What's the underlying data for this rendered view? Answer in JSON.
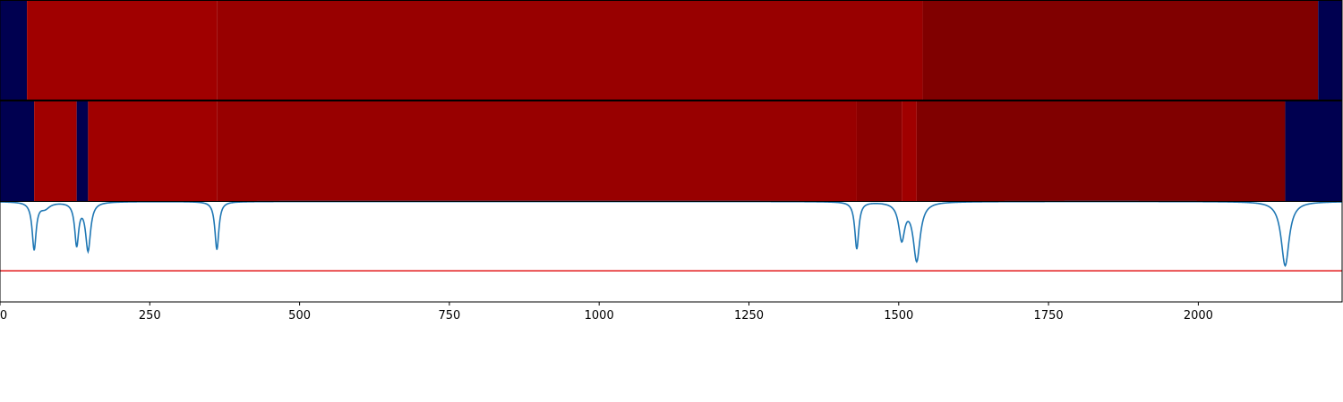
{
  "chart_data": [
    {
      "type": "heatmap",
      "xlim": [
        0,
        2240
      ],
      "segments": [
        {
          "x0": 0,
          "x1": 45,
          "color": "#000050"
        },
        {
          "x0": 45,
          "x1": 362,
          "color": "#a00000"
        },
        {
          "x0": 362,
          "x1": 1540,
          "color": "#980000"
        },
        {
          "x0": 1540,
          "x1": 2200,
          "color": "#800000"
        },
        {
          "x0": 2200,
          "x1": 2240,
          "color": "#000050"
        }
      ]
    },
    {
      "type": "heatmap",
      "xlim": [
        0,
        2240
      ],
      "segments": [
        {
          "x0": 0,
          "x1": 57,
          "color": "#000050"
        },
        {
          "x0": 57,
          "x1": 128,
          "color": "#a00000"
        },
        {
          "x0": 128,
          "x1": 147,
          "color": "#000050"
        },
        {
          "x0": 147,
          "x1": 362,
          "color": "#a00000"
        },
        {
          "x0": 362,
          "x1": 1430,
          "color": "#980000"
        },
        {
          "x0": 1430,
          "x1": 1505,
          "color": "#8a0000"
        },
        {
          "x0": 1505,
          "x1": 1530,
          "color": "#a00000"
        },
        {
          "x0": 1530,
          "x1": 2145,
          "color": "#800000"
        },
        {
          "x0": 2145,
          "x1": 2240,
          "color": "#000050"
        }
      ]
    },
    {
      "type": "line",
      "xlim": [
        0,
        2240
      ],
      "ylim": [
        -1.0,
        0.0
      ],
      "threshold": -0.69,
      "threshold_color": "#e31a1c",
      "line_color": "#1f77b4",
      "xticks": [
        0,
        250,
        500,
        750,
        1000,
        1250,
        1500,
        1750,
        2000
      ],
      "xtick_labels": [
        "0",
        "250",
        "500",
        "750",
        "1000",
        "1250",
        "1500",
        "1750",
        "2000"
      ],
      "dips": [
        {
          "x": 57,
          "depth": 0.47,
          "width": 4
        },
        {
          "x": 75,
          "depth": 0.06,
          "width": 10
        },
        {
          "x": 128,
          "depth": 0.42,
          "width": 4
        },
        {
          "x": 147,
          "depth": 0.48,
          "width": 5
        },
        {
          "x": 362,
          "depth": 0.48,
          "width": 4
        },
        {
          "x": 1430,
          "depth": 0.47,
          "width": 4
        },
        {
          "x": 1505,
          "depth": 0.36,
          "width": 6
        },
        {
          "x": 1530,
          "depth": 0.58,
          "width": 7
        },
        {
          "x": 2145,
          "depth": 0.64,
          "width": 8
        }
      ]
    }
  ]
}
